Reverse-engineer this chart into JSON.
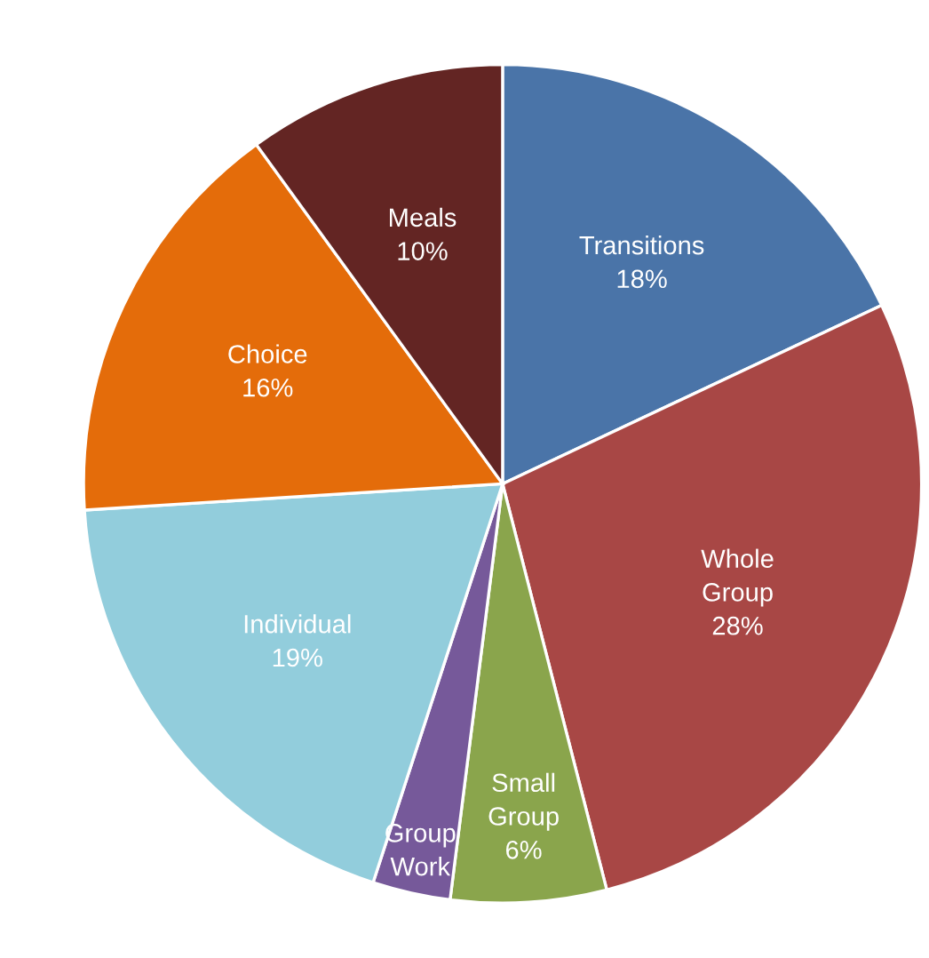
{
  "chart_data": {
    "type": "pie",
    "categories": [
      "Transitions",
      "Whole Group",
      "Small Group",
      "Group Work",
      "Individual",
      "Choice",
      "Meals"
    ],
    "values": [
      18,
      28,
      6,
      3,
      19,
      16,
      10
    ],
    "value_labels": [
      "18%",
      "28%",
      "6%",
      null,
      "19%",
      "16%",
      "10%"
    ],
    "colors": [
      "#4a74a8",
      "#a84745",
      "#8aa54c",
      "#76599a",
      "#92cddc",
      "#e46c0a",
      "#632523"
    ],
    "legend": false
  }
}
